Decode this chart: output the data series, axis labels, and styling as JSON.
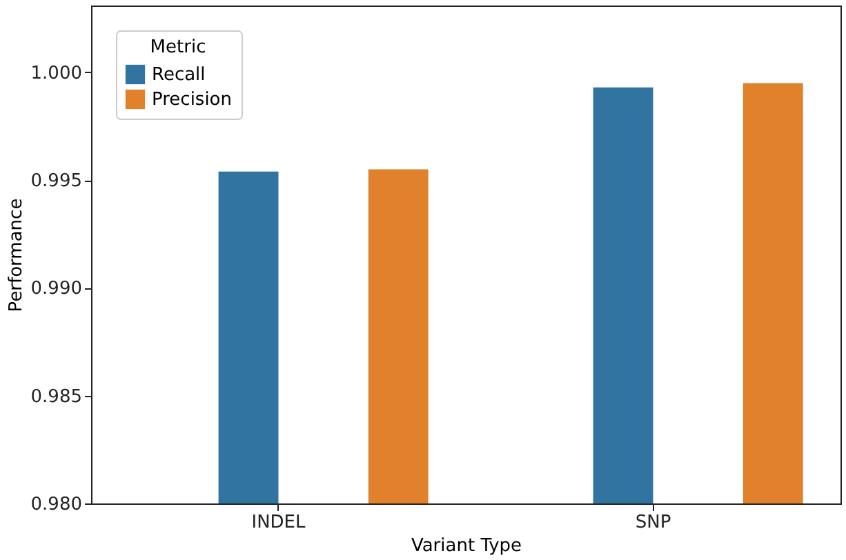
{
  "chart_data": {
    "type": "bar",
    "xlabel": "Variant Type",
    "ylabel": "Performance",
    "legend_title": "Metric",
    "categories": [
      "INDEL",
      "SNP"
    ],
    "series": [
      {
        "name": "Recall",
        "color": "#3274a1",
        "values": [
          0.9954,
          0.9993
        ]
      },
      {
        "name": "Precision",
        "color": "#e1812c",
        "values": [
          0.9955,
          0.9995
        ]
      }
    ],
    "ylim": [
      0.98,
      1.0031
    ],
    "yticks": [
      {
        "value": 0.98,
        "label": "0.980"
      },
      {
        "value": 0.985,
        "label": "0.985"
      },
      {
        "value": 0.99,
        "label": "0.990"
      },
      {
        "value": 0.995,
        "label": "0.995"
      },
      {
        "value": 1.0,
        "label": "1.000"
      }
    ],
    "legend": "top left",
    "grid": false
  }
}
